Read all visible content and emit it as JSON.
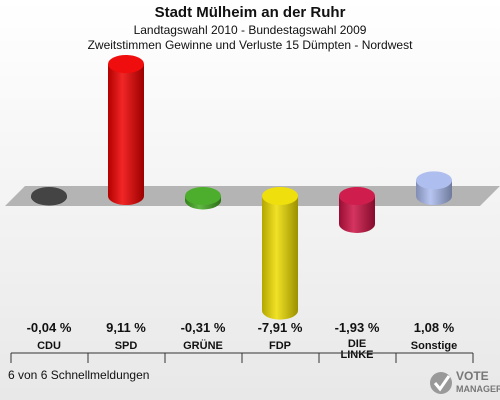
{
  "header": {
    "title": "Stadt Mülheim an der Ruhr",
    "subtitle1": "Landtagswahl 2010 - Bundestagswahl 2009",
    "subtitle2": "Zweitstimmen Gewinne und Verluste 15 Dümpten - Nordwest"
  },
  "chart_data": {
    "type": "bar",
    "title": "Stadt Mülheim an der Ruhr",
    "categories": [
      "CDU",
      "SPD",
      "GRÜNE",
      "FDP",
      "DIE LINKE",
      "Sonstige"
    ],
    "values": [
      -0.04,
      9.11,
      -0.31,
      -7.91,
      -1.93,
      1.08
    ],
    "value_labels": [
      "-0,04 %",
      "9,11 %",
      "-0,31 %",
      "-7,91 %",
      "-1,93 %",
      "1,08 %"
    ],
    "colors": [
      "#3a3a3a",
      "#ee0000",
      "#44aa22",
      "#eedd00",
      "#cc1144",
      "#aabbee"
    ],
    "xlabel": "",
    "ylabel": "",
    "ylim": [
      -10,
      10
    ]
  },
  "footer": {
    "text": "6 von 6 Schnellmeldungen"
  },
  "logo": {
    "line1": "VOTE",
    "line2": "MANAGER"
  }
}
